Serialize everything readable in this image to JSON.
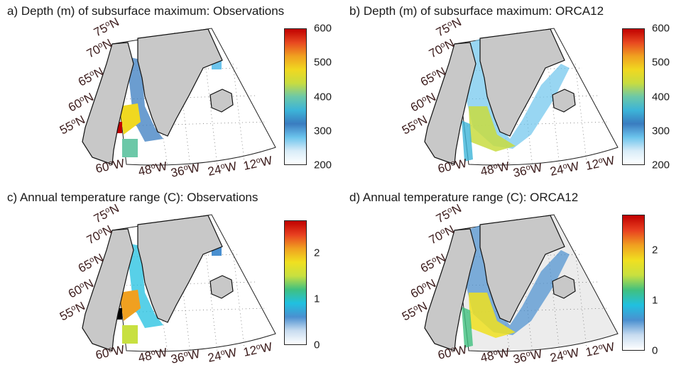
{
  "panels": [
    {
      "id": "a",
      "title": "a) Depth (m) of subsurface maximum: Observations",
      "colorbar": {
        "ticks": [
          "600",
          "500",
          "400",
          "300",
          "200"
        ],
        "scheme": "depth"
      }
    },
    {
      "id": "b",
      "title": "b) Depth (m) of subsurface maximum: ORCA12",
      "colorbar": {
        "ticks": [
          "600",
          "500",
          "400",
          "300",
          "200"
        ],
        "scheme": "depth"
      }
    },
    {
      "id": "c",
      "title": "c) Annual temperature range (C): Observations",
      "colorbar": {
        "ticks": [
          "2",
          "1",
          "0"
        ],
        "scheme": "range"
      }
    },
    {
      "id": "d",
      "title": "d) Annual temperature range (C): ORCA12",
      "colorbar": {
        "ticks": [
          "2",
          "1",
          "0"
        ],
        "scheme": "range"
      }
    }
  ],
  "map": {
    "lat_labels": [
      "75",
      "70",
      "65",
      "60",
      "55"
    ],
    "lon_labels": [
      "60",
      "48",
      "36",
      "24",
      "12"
    ],
    "lat_suffix": "N",
    "lon_suffix": "W",
    "degree_mark": "o"
  },
  "colors": {
    "land": "#c8c8c8",
    "depth_scale": [
      "#ffffff",
      "#d8ecf8",
      "#6cc4ec",
      "#3a7cc0",
      "#3cb4d8",
      "#6cc8a8",
      "#c8dc40",
      "#f0d820",
      "#f0a020",
      "#e84820",
      "#c00000"
    ],
    "range_scale": [
      "#ffffff",
      "#c8dcf0",
      "#4a90d0",
      "#20c0e0",
      "#40c080",
      "#c8e040",
      "#f0e020",
      "#f0a020",
      "#e84020",
      "#c00000"
    ]
  }
}
